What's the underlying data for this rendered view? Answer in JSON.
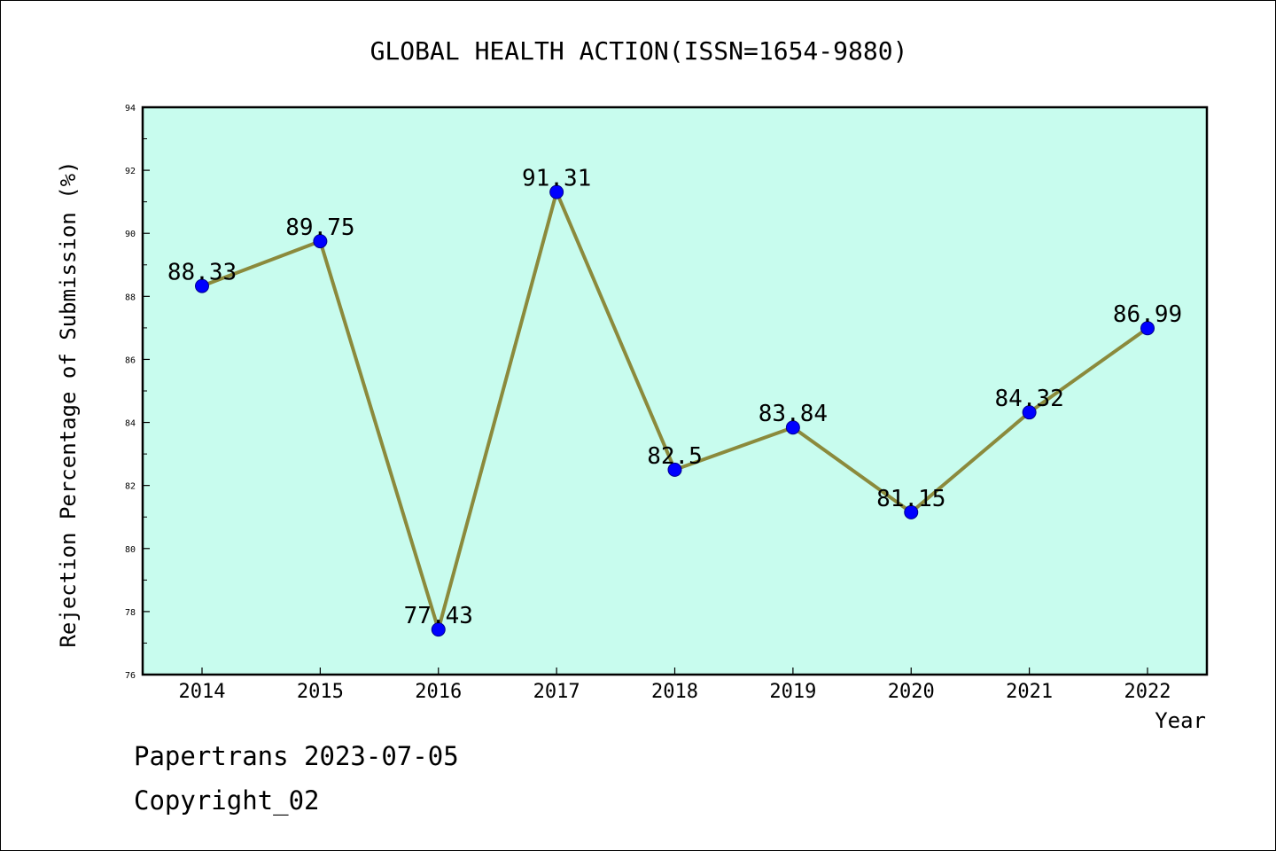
{
  "chart_data": {
    "type": "line",
    "title": "GLOBAL HEALTH ACTION(ISSN=1654-9880)",
    "xlabel": "Year",
    "ylabel": "Rejection Percentage of Submission (%)",
    "categories": [
      "2014",
      "2015",
      "2016",
      "2017",
      "2018",
      "2019",
      "2020",
      "2021",
      "2022"
    ],
    "series": [
      {
        "values": [
          88.33,
          89.75,
          77.43,
          91.31,
          82.5,
          83.84,
          81.15,
          84.32,
          86.99
        ]
      }
    ],
    "data_labels": [
      "88.33",
      "89.75",
      "77.43",
      "91.31",
      "82.5",
      "83.84",
      "81.15",
      "84.32",
      "86.99"
    ],
    "ylim": [
      76,
      94
    ],
    "yticks": [
      "76",
      "78",
      "80",
      "82",
      "84",
      "86",
      "88",
      "90",
      "92",
      "94"
    ],
    "grid": false,
    "legend": "none",
    "colors": {
      "plot_background": "#c8fcee",
      "line": "#8b8a3c",
      "marker": "#0000ff"
    }
  },
  "footer": {
    "line1": "Papertrans 2023-07-05",
    "line2": "Copyright_02"
  }
}
